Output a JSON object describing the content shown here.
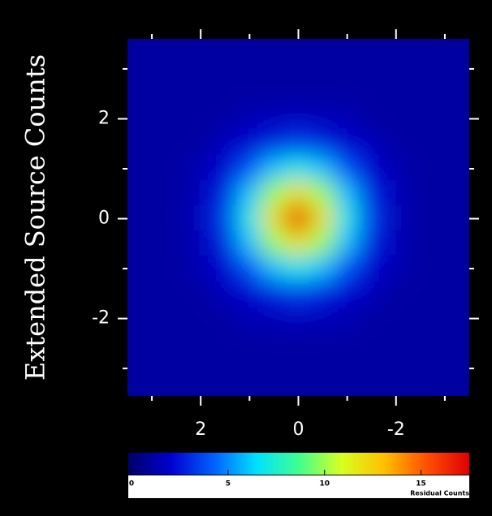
{
  "chart_data": {
    "type": "heatmap",
    "ylabel": "Extended Source Counts",
    "colorbar_label": "Residual Counts",
    "xlim": [
      3.5,
      -3.5
    ],
    "ylim": [
      -3.55,
      3.6
    ],
    "xticks": [
      2,
      0,
      -2
    ],
    "yticks": [
      2,
      0,
      -2
    ],
    "xminorticks": [
      3,
      1,
      -1,
      -3
    ],
    "yminorticks": [
      3,
      1,
      -1,
      -3
    ],
    "clim": [
      0,
      17.5
    ],
    "cticks": [
      0,
      5,
      10,
      15
    ],
    "colormap": [
      "#00006a",
      "#0000d0",
      "#0060ff",
      "#00e0ff",
      "#40ff90",
      "#d8ff20",
      "#ffc000",
      "#ff5000",
      "#e00000"
    ],
    "x": [
      3.5,
      3,
      2.5,
      2,
      1.5,
      1,
      0.5,
      0,
      -0.5,
      -1,
      -1.5,
      -2,
      -2.5,
      -3,
      -3.5
    ],
    "y": [
      3.5,
      3,
      2.5,
      2,
      1.5,
      1,
      0.5,
      0,
      -0.5,
      -1,
      -1.5,
      -2,
      -2.5,
      -3,
      -3.5
    ],
    "z": [
      [
        1.2,
        1.2,
        1.2,
        1.2,
        1.2,
        1.2,
        1.2,
        1.2,
        1.2,
        1.2,
        1.2,
        1.2,
        1.2,
        1.2,
        1.2
      ],
      [
        1.2,
        1.2,
        1.2,
        1.2,
        1.2,
        1.2,
        1.2,
        1.2,
        1.2,
        1.2,
        1.2,
        1.2,
        1.2,
        1.2,
        1.2
      ],
      [
        1.2,
        1.2,
        1.2,
        1.2,
        1.2,
        1.2,
        1.2,
        1.2,
        1.2,
        1.2,
        1.2,
        1.2,
        1.2,
        1.2,
        1.2
      ],
      [
        1.2,
        1.2,
        1.2,
        1.2,
        1.2,
        1.6,
        1.7,
        1.8,
        1.7,
        1.6,
        1.2,
        1.2,
        1.2,
        1.2,
        1.2
      ],
      [
        1.2,
        1.2,
        1.2,
        1.2,
        1.8,
        2.2,
        3,
        3.5,
        3,
        2.2,
        1.8,
        1.2,
        1.2,
        1.2,
        1.2
      ],
      [
        1.2,
        1.2,
        1.2,
        1.6,
        2.2,
        4,
        6,
        7,
        6,
        4,
        2.2,
        1.6,
        1.2,
        1.2,
        1.2
      ],
      [
        1.2,
        1.2,
        1.2,
        1.7,
        3,
        6,
        10,
        12,
        10,
        6,
        3,
        1.7,
        1.2,
        1.2,
        1.2
      ],
      [
        1.2,
        1.2,
        1.2,
        1.8,
        3.5,
        7,
        12,
        17,
        12,
        7,
        3.5,
        1.8,
        1.2,
        1.2,
        1.2
      ],
      [
        1.2,
        1.2,
        1.2,
        1.7,
        3,
        6,
        10,
        12,
        10,
        6,
        3,
        1.7,
        1.2,
        1.2,
        1.2
      ],
      [
        1.2,
        1.2,
        1.2,
        1.6,
        2.2,
        4,
        6,
        7,
        6,
        4,
        2.2,
        1.6,
        1.2,
        1.2,
        1.2
      ],
      [
        1.2,
        1.2,
        1.2,
        1.2,
        1.8,
        2.2,
        3,
        3.5,
        3,
        2.2,
        1.8,
        1.2,
        1.2,
        1.2,
        1.2
      ],
      [
        1.2,
        1.2,
        1.2,
        1.2,
        1.2,
        1.6,
        1.7,
        1.8,
        1.7,
        1.6,
        1.2,
        1.2,
        1.2,
        1.2,
        1.2
      ],
      [
        1.2,
        1.2,
        1.2,
        1.2,
        1.2,
        1.2,
        1.2,
        1.2,
        1.2,
        1.2,
        1.2,
        1.2,
        1.2,
        1.2,
        1.2
      ],
      [
        1.2,
        1.2,
        1.2,
        1.2,
        1.2,
        1.2,
        1.2,
        1.2,
        1.2,
        1.2,
        1.2,
        1.2,
        1.2,
        1.2,
        1.2
      ],
      [
        1.2,
        1.2,
        1.2,
        1.2,
        1.2,
        1.2,
        1.2,
        1.2,
        1.2,
        1.2,
        1.2,
        1.2,
        1.2,
        1.2,
        1.2
      ]
    ]
  }
}
